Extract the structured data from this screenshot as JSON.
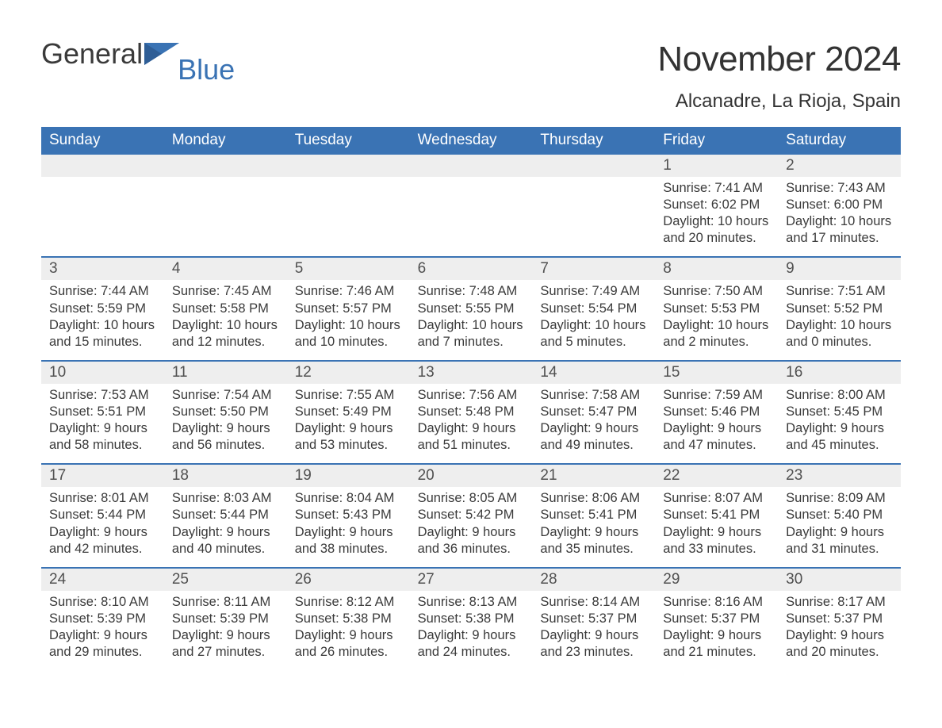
{
  "logo": {
    "general": "General",
    "blue": "Blue"
  },
  "title": "November 2024",
  "location": "Alcanadre, La Rioja, Spain",
  "colors": {
    "header_bg": "#3a73b4",
    "header_text": "#ffffff",
    "num_bar_bg": "#eeeeee",
    "num_bar_border": "#3a73b4",
    "body_text": "#3a3a3a",
    "day_num_text": "#505050",
    "background": "#ffffff",
    "logo_blue": "#3a73b4"
  },
  "layout": {
    "columns": 7,
    "cell_font_size_pt": 12,
    "daynum_font_size_pt": 14,
    "weekday_font_size_pt": 14,
    "title_font_size_pt": 33,
    "location_font_size_pt": 18
  },
  "weekdays": [
    "Sunday",
    "Monday",
    "Tuesday",
    "Wednesday",
    "Thursday",
    "Friday",
    "Saturday"
  ],
  "weeks": [
    [
      null,
      null,
      null,
      null,
      null,
      {
        "n": "1",
        "sunrise": "7:41 AM",
        "sunset": "6:02 PM",
        "daylight": "10 hours and 20 minutes."
      },
      {
        "n": "2",
        "sunrise": "7:43 AM",
        "sunset": "6:00 PM",
        "daylight": "10 hours and 17 minutes."
      }
    ],
    [
      {
        "n": "3",
        "sunrise": "7:44 AM",
        "sunset": "5:59 PM",
        "daylight": "10 hours and 15 minutes."
      },
      {
        "n": "4",
        "sunrise": "7:45 AM",
        "sunset": "5:58 PM",
        "daylight": "10 hours and 12 minutes."
      },
      {
        "n": "5",
        "sunrise": "7:46 AM",
        "sunset": "5:57 PM",
        "daylight": "10 hours and 10 minutes."
      },
      {
        "n": "6",
        "sunrise": "7:48 AM",
        "sunset": "5:55 PM",
        "daylight": "10 hours and 7 minutes."
      },
      {
        "n": "7",
        "sunrise": "7:49 AM",
        "sunset": "5:54 PM",
        "daylight": "10 hours and 5 minutes."
      },
      {
        "n": "8",
        "sunrise": "7:50 AM",
        "sunset": "5:53 PM",
        "daylight": "10 hours and 2 minutes."
      },
      {
        "n": "9",
        "sunrise": "7:51 AM",
        "sunset": "5:52 PM",
        "daylight": "10 hours and 0 minutes."
      }
    ],
    [
      {
        "n": "10",
        "sunrise": "7:53 AM",
        "sunset": "5:51 PM",
        "daylight": "9 hours and 58 minutes."
      },
      {
        "n": "11",
        "sunrise": "7:54 AM",
        "sunset": "5:50 PM",
        "daylight": "9 hours and 56 minutes."
      },
      {
        "n": "12",
        "sunrise": "7:55 AM",
        "sunset": "5:49 PM",
        "daylight": "9 hours and 53 minutes."
      },
      {
        "n": "13",
        "sunrise": "7:56 AM",
        "sunset": "5:48 PM",
        "daylight": "9 hours and 51 minutes."
      },
      {
        "n": "14",
        "sunrise": "7:58 AM",
        "sunset": "5:47 PM",
        "daylight": "9 hours and 49 minutes."
      },
      {
        "n": "15",
        "sunrise": "7:59 AM",
        "sunset": "5:46 PM",
        "daylight": "9 hours and 47 minutes."
      },
      {
        "n": "16",
        "sunrise": "8:00 AM",
        "sunset": "5:45 PM",
        "daylight": "9 hours and 45 minutes."
      }
    ],
    [
      {
        "n": "17",
        "sunrise": "8:01 AM",
        "sunset": "5:44 PM",
        "daylight": "9 hours and 42 minutes."
      },
      {
        "n": "18",
        "sunrise": "8:03 AM",
        "sunset": "5:44 PM",
        "daylight": "9 hours and 40 minutes."
      },
      {
        "n": "19",
        "sunrise": "8:04 AM",
        "sunset": "5:43 PM",
        "daylight": "9 hours and 38 minutes."
      },
      {
        "n": "20",
        "sunrise": "8:05 AM",
        "sunset": "5:42 PM",
        "daylight": "9 hours and 36 minutes."
      },
      {
        "n": "21",
        "sunrise": "8:06 AM",
        "sunset": "5:41 PM",
        "daylight": "9 hours and 35 minutes."
      },
      {
        "n": "22",
        "sunrise": "8:07 AM",
        "sunset": "5:41 PM",
        "daylight": "9 hours and 33 minutes."
      },
      {
        "n": "23",
        "sunrise": "8:09 AM",
        "sunset": "5:40 PM",
        "daylight": "9 hours and 31 minutes."
      }
    ],
    [
      {
        "n": "24",
        "sunrise": "8:10 AM",
        "sunset": "5:39 PM",
        "daylight": "9 hours and 29 minutes."
      },
      {
        "n": "25",
        "sunrise": "8:11 AM",
        "sunset": "5:39 PM",
        "daylight": "9 hours and 27 minutes."
      },
      {
        "n": "26",
        "sunrise": "8:12 AM",
        "sunset": "5:38 PM",
        "daylight": "9 hours and 26 minutes."
      },
      {
        "n": "27",
        "sunrise": "8:13 AM",
        "sunset": "5:38 PM",
        "daylight": "9 hours and 24 minutes."
      },
      {
        "n": "28",
        "sunrise": "8:14 AM",
        "sunset": "5:37 PM",
        "daylight": "9 hours and 23 minutes."
      },
      {
        "n": "29",
        "sunrise": "8:16 AM",
        "sunset": "5:37 PM",
        "daylight": "9 hours and 21 minutes."
      },
      {
        "n": "30",
        "sunrise": "8:17 AM",
        "sunset": "5:37 PM",
        "daylight": "9 hours and 20 minutes."
      }
    ]
  ],
  "labels": {
    "sunrise": "Sunrise: ",
    "sunset": "Sunset: ",
    "daylight": "Daylight: "
  }
}
